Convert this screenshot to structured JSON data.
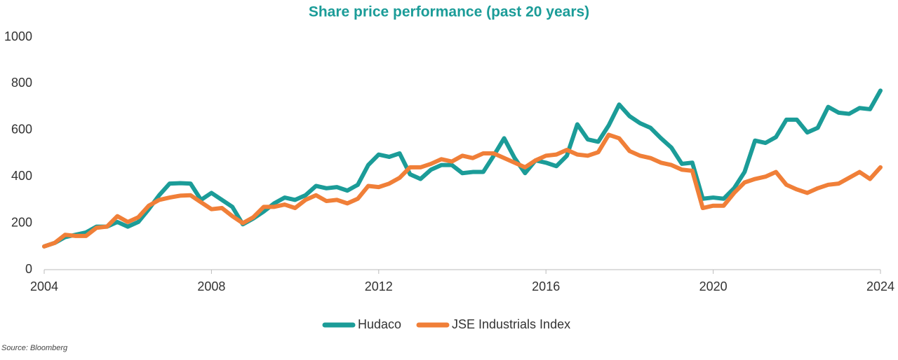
{
  "chart_data": {
    "type": "line",
    "title": "Share price performance (past 20 years)",
    "source": "Source: Bloomberg",
    "x": [
      2004,
      2004.25,
      2004.5,
      2004.75,
      2005,
      2005.25,
      2005.5,
      2005.75,
      2006,
      2006.25,
      2006.5,
      2006.75,
      2007,
      2007.25,
      2007.5,
      2007.75,
      2008,
      2008.25,
      2008.5,
      2008.75,
      2009,
      2009.25,
      2009.5,
      2009.75,
      2010,
      2010.25,
      2010.5,
      2010.75,
      2011,
      2011.25,
      2011.5,
      2011.75,
      2012,
      2012.25,
      2012.5,
      2012.75,
      2013,
      2013.25,
      2013.5,
      2013.75,
      2014,
      2014.25,
      2014.5,
      2014.75,
      2015,
      2015.25,
      2015.5,
      2015.75,
      2016,
      2016.25,
      2016.5,
      2016.75,
      2017,
      2017.25,
      2017.5,
      2017.75,
      2018,
      2018.25,
      2018.5,
      2018.75,
      2019,
      2019.25,
      2019.5,
      2019.75,
      2020,
      2020.25,
      2020.5,
      2020.75,
      2021,
      2021.25,
      2021.5,
      2021.75,
      2022,
      2022.25,
      2022.5,
      2022.75,
      2023,
      2023.25,
      2023.5,
      2023.75,
      2024
    ],
    "series": [
      {
        "name": "Hudaco",
        "color": "#1b9c98",
        "values": [
          100,
          115,
          140,
          150,
          160,
          185,
          185,
          205,
          185,
          205,
          260,
          320,
          370,
          372,
          370,
          300,
          330,
          300,
          270,
          195,
          220,
          250,
          285,
          310,
          300,
          320,
          360,
          350,
          355,
          340,
          365,
          450,
          495,
          485,
          500,
          410,
          390,
          430,
          450,
          450,
          415,
          420,
          420,
          490,
          565,
          480,
          415,
          470,
          460,
          445,
          490,
          625,
          560,
          550,
          620,
          710,
          660,
          630,
          610,
          565,
          525,
          455,
          460,
          305,
          310,
          305,
          350,
          420,
          555,
          545,
          570,
          645,
          645,
          590,
          610,
          700,
          675,
          670,
          695,
          690,
          770
        ]
      },
      {
        "name": "JSE Industrials Index",
        "color": "#f07f38",
        "values": [
          100,
          115,
          150,
          145,
          145,
          180,
          185,
          230,
          205,
          225,
          275,
          300,
          310,
          318,
          320,
          290,
          260,
          265,
          230,
          200,
          225,
          270,
          270,
          280,
          265,
          300,
          320,
          295,
          300,
          285,
          305,
          360,
          355,
          370,
          395,
          440,
          440,
          455,
          475,
          465,
          490,
          480,
          500,
          500,
          480,
          460,
          440,
          470,
          490,
          495,
          515,
          495,
          490,
          505,
          580,
          565,
          510,
          490,
          480,
          460,
          450,
          430,
          425,
          265,
          275,
          275,
          330,
          375,
          390,
          400,
          420,
          365,
          345,
          330,
          350,
          365,
          370,
          395,
          420,
          390,
          440
        ]
      }
    ],
    "xlim": [
      2004,
      2024
    ],
    "xticks": [
      2004,
      2008,
      2012,
      2016,
      2020,
      2024
    ],
    "ylim": [
      0,
      1000
    ],
    "yticks": [
      0,
      200,
      400,
      600,
      800,
      1000
    ],
    "legend": "bottom"
  }
}
